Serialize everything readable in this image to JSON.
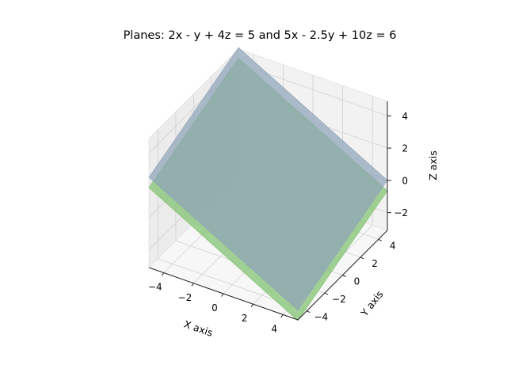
{
  "chart_data": {
    "type": "surface3d",
    "title": "Planes: 2x - y + 4z = 5 and 5x - 2.5y + 10z = 6",
    "xlabel": "X axis",
    "ylabel": "Y axis",
    "zlabel": "Z axis",
    "xlim": [
      -5,
      5
    ],
    "ylim": [
      -5,
      5
    ],
    "zlim": [
      -3.1,
      4.9
    ],
    "xticks": [
      -4,
      -2,
      0,
      2,
      4
    ],
    "yticks": [
      -4,
      -2,
      0,
      2,
      4
    ],
    "zticks": [
      -2,
      0,
      2,
      4
    ],
    "grid": true,
    "series": [
      {
        "equation": "2x - y + 4z = 5",
        "coefficients": {
          "a": 2,
          "b": -1,
          "c": 4,
          "d": 5
        },
        "color": "#8fa3b8",
        "corners": [
          {
            "x": -5,
            "y": -5,
            "z": 2.5
          },
          {
            "x": 5,
            "y": -5,
            "z": -2.5
          },
          {
            "x": 5,
            "y": 5,
            "z": 0
          },
          {
            "x": -5,
            "y": 5,
            "z": 5
          }
        ]
      },
      {
        "equation": "5x - 2.5y + 10z = 6",
        "coefficients": {
          "a": 5,
          "b": -2.5,
          "c": 10,
          "d": 6
        },
        "color": "#7fc16e",
        "corners": [
          {
            "x": -5,
            "y": -5,
            "z": 1.85
          },
          {
            "x": 5,
            "y": -5,
            "z": -3.15
          },
          {
            "x": 5,
            "y": 5,
            "z": -0.65
          },
          {
            "x": -5,
            "y": 5,
            "z": 4.35
          }
        ]
      }
    ]
  }
}
